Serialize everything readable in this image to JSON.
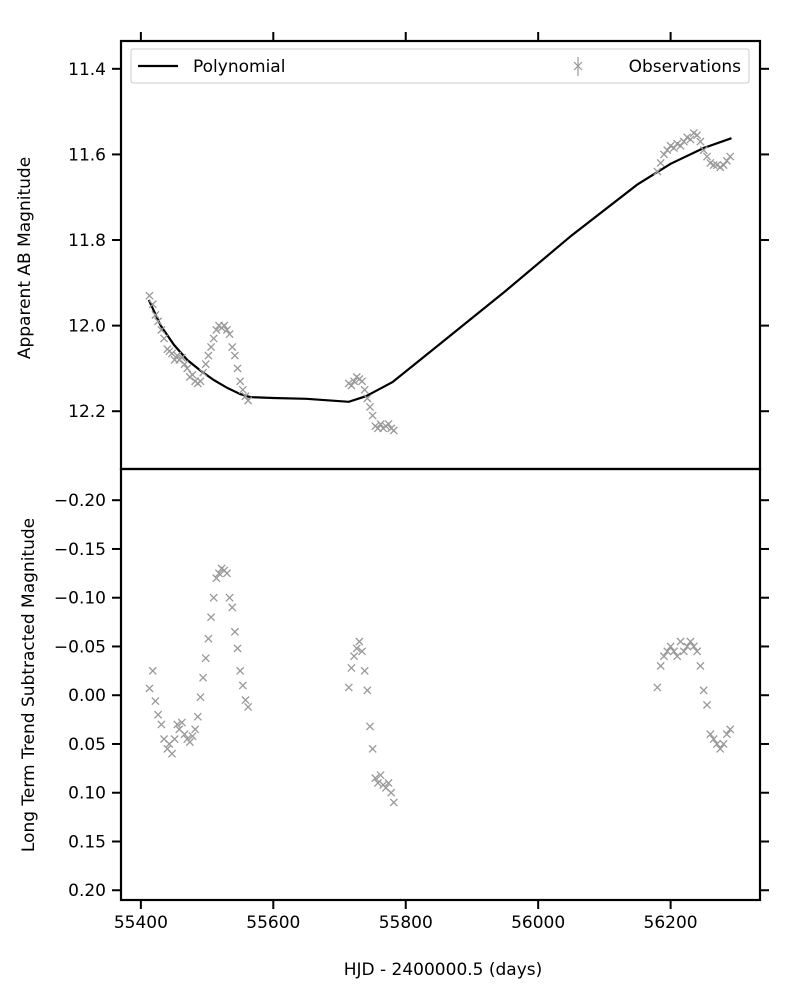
{
  "chart_data": [
    {
      "type": "scatter",
      "panel": "top",
      "ylabel": "Apparent AB Magnitude",
      "xlabel": "",
      "xlim": [
        55370,
        56335
      ],
      "ylim": [
        12.335,
        11.335
      ],
      "y_inverted": true,
      "xticks": [
        55400,
        55600,
        55800,
        56000,
        56200
      ],
      "yticks": [
        11.4,
        11.6,
        11.8,
        12.0,
        12.2
      ],
      "ytick_labels": [
        "11.4",
        "11.6",
        "11.8",
        "12.0",
        "12.2"
      ],
      "legend": {
        "placement": "top",
        "entries": [
          "Polynomial",
          "Observations"
        ]
      },
      "series": [
        {
          "name": "Polynomial",
          "kind": "line",
          "color": "#000000",
          "x": [
            55412,
            55430,
            55450,
            55470,
            55490,
            55510,
            55530,
            55550,
            55565,
            55600,
            55650,
            55714,
            55740,
            55780,
            55850,
            55950,
            56050,
            56150,
            56200,
            56250,
            56292
          ],
          "y": [
            11.94,
            12.0,
            12.045,
            12.08,
            12.105,
            12.127,
            12.145,
            12.16,
            12.167,
            12.169,
            12.171,
            12.178,
            12.165,
            12.132,
            12.045,
            11.92,
            11.79,
            11.67,
            11.622,
            11.585,
            11.562
          ]
        },
        {
          "name": "Observations",
          "kind": "scatter",
          "marker": "x",
          "color": "#999999",
          "x": [
            55413,
            55418,
            55422,
            55426,
            55431,
            55435,
            55440,
            55443,
            55447,
            55451,
            55455,
            55458,
            55462,
            55466,
            55470,
            55474,
            55478,
            55482,
            55486,
            55490,
            55494,
            55498,
            55502,
            55506,
            55510,
            55514,
            55518,
            55522,
            55526,
            55530,
            55534,
            55538,
            55542,
            55546,
            55550,
            55554,
            55558,
            55562,
            55714,
            55718,
            55722,
            55726,
            55730,
            55734,
            55738,
            55742,
            55746,
            55750,
            55754,
            55758,
            55762,
            55766,
            55770,
            55774,
            55778,
            55782,
            56180,
            56185,
            56190,
            56195,
            56200,
            56205,
            56210,
            56215,
            56220,
            56225,
            56230,
            56235,
            56240,
            56245,
            56250,
            56255,
            56260,
            56265,
            56270,
            56275,
            56280,
            56285,
            56290
          ],
          "y": [
            11.93,
            11.95,
            11.975,
            11.99,
            12.01,
            12.03,
            12.055,
            12.06,
            12.065,
            12.08,
            12.07,
            12.08,
            12.075,
            12.09,
            12.1,
            12.12,
            12.115,
            12.13,
            12.135,
            12.13,
            12.11,
            12.09,
            12.07,
            12.05,
            12.03,
            12.01,
            12.0,
            12.005,
            12.0,
            12.01,
            12.02,
            12.05,
            12.07,
            12.1,
            12.13,
            12.15,
            12.165,
            12.175,
            12.135,
            12.14,
            12.13,
            12.12,
            12.125,
            12.13,
            12.15,
            12.17,
            12.19,
            12.21,
            12.235,
            12.24,
            12.23,
            12.24,
            12.235,
            12.23,
            12.24,
            12.245,
            11.64,
            11.62,
            11.6,
            11.59,
            11.58,
            11.585,
            11.575,
            11.58,
            11.57,
            11.56,
            11.565,
            11.55,
            11.555,
            11.57,
            11.59,
            11.605,
            11.62,
            11.625,
            11.625,
            11.63,
            11.625,
            11.615,
            11.605
          ]
        }
      ]
    },
    {
      "type": "scatter",
      "panel": "bottom",
      "ylabel": "Long Term Trend Subtracted Magnitude",
      "xlabel": "HJD - 2400000.5 (days)",
      "xlim": [
        55370,
        56335
      ],
      "ylim": [
        0.21,
        -0.232
      ],
      "y_inverted": true,
      "xticks": [
        55400,
        55600,
        55800,
        56000,
        56200
      ],
      "xtick_labels": [
        "55400",
        "55600",
        "55800",
        "56000",
        "56200"
      ],
      "yticks": [
        -0.2,
        -0.15,
        -0.1,
        -0.05,
        0.0,
        0.05,
        0.1,
        0.15,
        0.2
      ],
      "ytick_labels": [
        "−0.20",
        "−0.15",
        "−0.10",
        "−0.05",
        "0.00",
        "0.05",
        "0.10",
        "0.15",
        "0.20"
      ],
      "series": [
        {
          "kind": "scatter",
          "marker": "x",
          "color": "#999999",
          "x": [
            55413,
            55418,
            55422,
            55426,
            55431,
            55435,
            55440,
            55443,
            55447,
            55451,
            55455,
            55458,
            55462,
            55466,
            55470,
            55474,
            55478,
            55482,
            55486,
            55490,
            55494,
            55498,
            55502,
            55506,
            55510,
            55514,
            55518,
            55522,
            55526,
            55530,
            55534,
            55538,
            55542,
            55546,
            55550,
            55554,
            55558,
            55562,
            55714,
            55718,
            55722,
            55726,
            55730,
            55734,
            55738,
            55742,
            55746,
            55750,
            55754,
            55758,
            55762,
            55766,
            55770,
            55774,
            55778,
            55782,
            56180,
            56185,
            56190,
            56195,
            56200,
            56205,
            56210,
            56215,
            56220,
            56225,
            56230,
            56235,
            56240,
            56245,
            56250,
            56255,
            56260,
            56265,
            56270,
            56275,
            56280,
            56285,
            56290
          ],
          "y": [
            -0.007,
            -0.025,
            0.006,
            0.02,
            0.03,
            0.045,
            0.055,
            0.05,
            0.06,
            0.045,
            0.03,
            0.035,
            0.028,
            0.04,
            0.045,
            0.048,
            0.042,
            0.035,
            0.022,
            0.002,
            -0.018,
            -0.038,
            -0.058,
            -0.08,
            -0.1,
            -0.12,
            -0.125,
            -0.13,
            -0.128,
            -0.125,
            -0.1,
            -0.09,
            -0.065,
            -0.048,
            -0.025,
            -0.01,
            0.005,
            0.012,
            -0.008,
            -0.028,
            -0.04,
            -0.048,
            -0.055,
            -0.045,
            -0.025,
            -0.005,
            0.032,
            0.055,
            0.085,
            0.09,
            0.082,
            0.092,
            0.095,
            0.09,
            0.1,
            0.11,
            -0.008,
            -0.03,
            -0.04,
            -0.045,
            -0.05,
            -0.045,
            -0.04,
            -0.055,
            -0.045,
            -0.05,
            -0.055,
            -0.05,
            -0.045,
            -0.03,
            -0.005,
            0.01,
            0.04,
            0.045,
            0.05,
            0.055,
            0.05,
            0.04,
            0.035
          ]
        }
      ]
    }
  ]
}
